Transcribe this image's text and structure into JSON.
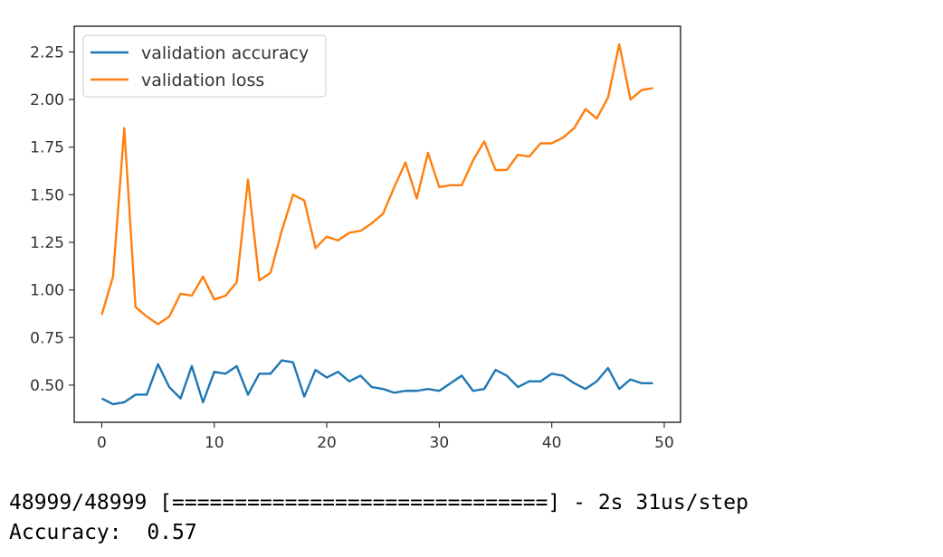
{
  "chart_data": {
    "type": "line",
    "x": [
      0,
      1,
      2,
      3,
      4,
      5,
      6,
      7,
      8,
      9,
      10,
      11,
      12,
      13,
      14,
      15,
      16,
      17,
      18,
      19,
      20,
      21,
      22,
      23,
      24,
      25,
      26,
      27,
      28,
      29,
      30,
      31,
      32,
      33,
      34,
      35,
      36,
      37,
      38,
      39,
      40,
      41,
      42,
      43,
      44,
      45,
      46,
      47,
      48,
      49
    ],
    "series": [
      {
        "name": "validation accuracy",
        "color": "#1f77b4",
        "values": [
          0.43,
          0.4,
          0.41,
          0.45,
          0.45,
          0.61,
          0.49,
          0.43,
          0.6,
          0.41,
          0.57,
          0.56,
          0.6,
          0.45,
          0.56,
          0.56,
          0.63,
          0.62,
          0.44,
          0.58,
          0.54,
          0.57,
          0.52,
          0.55,
          0.49,
          0.48,
          0.46,
          0.47,
          0.47,
          0.48,
          0.47,
          0.51,
          0.55,
          0.47,
          0.48,
          0.58,
          0.55,
          0.49,
          0.52,
          0.52,
          0.56,
          0.55,
          0.51,
          0.48,
          0.52,
          0.59,
          0.48,
          0.53,
          0.51,
          0.51
        ]
      },
      {
        "name": "validation loss",
        "color": "#ff7f0e",
        "values": [
          0.87,
          1.07,
          1.85,
          0.91,
          0.86,
          0.82,
          0.86,
          0.98,
          0.97,
          1.07,
          0.95,
          0.97,
          1.04,
          1.58,
          1.05,
          1.09,
          1.31,
          1.5,
          1.47,
          1.22,
          1.28,
          1.26,
          1.3,
          1.31,
          1.35,
          1.4,
          1.54,
          1.67,
          1.48,
          1.72,
          1.54,
          1.55,
          1.55,
          1.68,
          1.78,
          1.63,
          1.63,
          1.71,
          1.7,
          1.77,
          1.77,
          1.8,
          1.85,
          1.95,
          1.9,
          2.01,
          2.29,
          2.0,
          2.05,
          2.06
        ]
      }
    ],
    "xlim": [
      -2.45,
      51.45
    ],
    "ylim": [
      0.305,
      2.385
    ],
    "xticks": [
      0,
      10,
      20,
      30,
      40,
      50
    ],
    "yticks": [
      0.5,
      0.75,
      1.0,
      1.25,
      1.5,
      1.75,
      2.0,
      2.25
    ],
    "ytick_labels": [
      "0.50",
      "0.75",
      "1.00",
      "1.25",
      "1.50",
      "1.75",
      "2.00",
      "2.25"
    ],
    "xtick_labels": [
      "0",
      "10",
      "20",
      "30",
      "40",
      "50"
    ],
    "legend_position": "upper-left",
    "grid": false
  },
  "console": {
    "progress_line": "48999/48999 [==============================] - 2s 31us/step",
    "accuracy_line": "Accuracy:  0.57"
  }
}
